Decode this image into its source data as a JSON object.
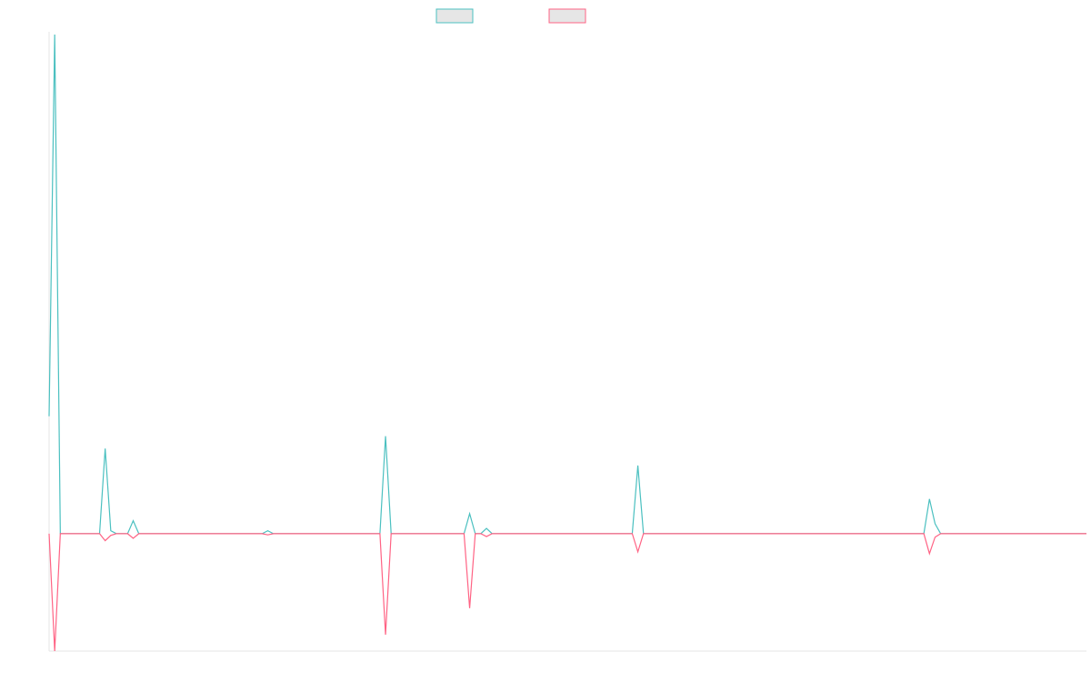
{
  "chart_data": {
    "type": "line",
    "ylim": [
      -20,
      85
    ],
    "series": [
      {
        "color": "#4bc0c0",
        "values": [
          20,
          85,
          0,
          0,
          0,
          0,
          0,
          0,
          0,
          0,
          14.5,
          0.5,
          0,
          0,
          0,
          2.2,
          0,
          0,
          0,
          0,
          0,
          0,
          0,
          0,
          0,
          0,
          0,
          0,
          0,
          0,
          0,
          0,
          0,
          0,
          0,
          0,
          0,
          0,
          0,
          0.5,
          0,
          0,
          0,
          0,
          0,
          0,
          0,
          0,
          0,
          0,
          0,
          0,
          0,
          0,
          0,
          0,
          0,
          0,
          0,
          0,
          16.6,
          0,
          0,
          0,
          0,
          0,
          0,
          0,
          0,
          0,
          0,
          0,
          0,
          0,
          0,
          3.4,
          0,
          0,
          0.9,
          0,
          0,
          0,
          0,
          0,
          0,
          0,
          0,
          0,
          0,
          0,
          0,
          0,
          0,
          0,
          0,
          0,
          0,
          0,
          0,
          0,
          0,
          0,
          0,
          0,
          0,
          11.6,
          0,
          0,
          0,
          0,
          0,
          0,
          0,
          0,
          0,
          0,
          0,
          0,
          0,
          0,
          0,
          0,
          0,
          0,
          0,
          0,
          0,
          0,
          0,
          0,
          0,
          0,
          0,
          0,
          0,
          0,
          0,
          0,
          0,
          0,
          0,
          0,
          0,
          0,
          0,
          0,
          0,
          0,
          0,
          0,
          0,
          0,
          0,
          0,
          0,
          0,
          0,
          5.9,
          1.7,
          0,
          0,
          0,
          0,
          0,
          0,
          0,
          0,
          0,
          0,
          0,
          0,
          0,
          0,
          0,
          0,
          0,
          0,
          0,
          0,
          0,
          0,
          0,
          0,
          0,
          0,
          0
        ]
      },
      {
        "color": "#ff6384",
        "values": [
          0,
          -20,
          0,
          0,
          0,
          0,
          0,
          0,
          0,
          0,
          -1.2,
          -0.3,
          0,
          0,
          0,
          -0.8,
          0,
          0,
          0,
          0,
          0,
          0,
          0,
          0,
          0,
          0,
          0,
          0,
          0,
          0,
          0,
          0,
          0,
          0,
          0,
          0,
          0,
          0,
          0,
          -0.2,
          0,
          0,
          0,
          0,
          0,
          0,
          0,
          0,
          0,
          0,
          0,
          0,
          0,
          0,
          0,
          0,
          0,
          0,
          0,
          0,
          -17.2,
          0,
          0,
          0,
          0,
          0,
          0,
          0,
          0,
          0,
          0,
          0,
          0,
          0,
          0,
          -12.7,
          0,
          0,
          -0.5,
          0,
          0,
          0,
          0,
          0,
          0,
          0,
          0,
          0,
          0,
          0,
          0,
          0,
          0,
          0,
          0,
          0,
          0,
          0,
          0,
          0,
          0,
          0,
          0,
          0,
          0,
          -3.1,
          0,
          0,
          0,
          0,
          0,
          0,
          0,
          0,
          0,
          0,
          0,
          0,
          0,
          0,
          0,
          0,
          0,
          0,
          0,
          0,
          0,
          0,
          0,
          0,
          0,
          0,
          0,
          0,
          0,
          0,
          0,
          0,
          0,
          0,
          0,
          0,
          0,
          0,
          0,
          0,
          0,
          0,
          0,
          0,
          0,
          0,
          0,
          0,
          0,
          0,
          0,
          -3.4,
          -0.6,
          0,
          0,
          0,
          0,
          0,
          0,
          0,
          0,
          0,
          0,
          0,
          0,
          0,
          0,
          0,
          0,
          0,
          0,
          0,
          0,
          0,
          0,
          0,
          0,
          0,
          0,
          0
        ]
      }
    ]
  }
}
